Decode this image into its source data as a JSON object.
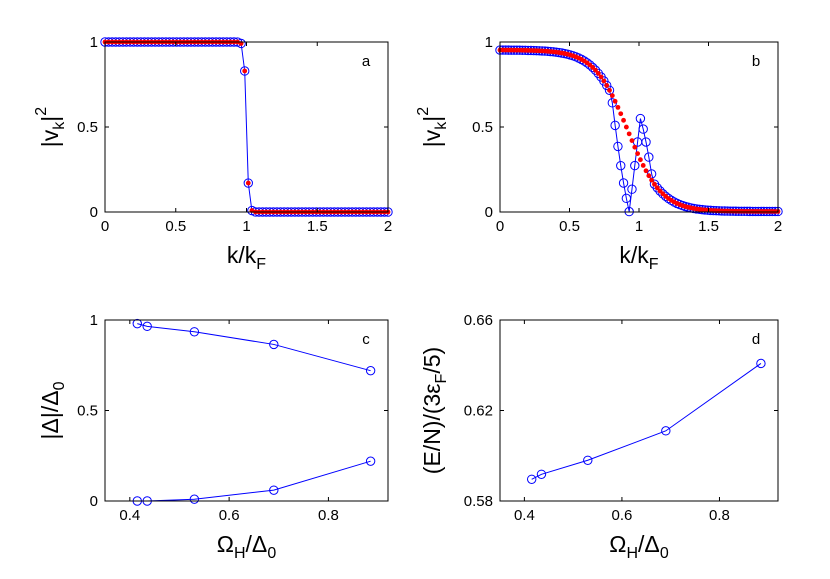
{
  "chart_data": [
    {
      "id": "a",
      "type": "line",
      "panel_label": "a",
      "xlabel": {
        "main": "k/k",
        "sub": "F"
      },
      "ylabel": {
        "pre": "|v",
        "sub": "k",
        "post": "|",
        "sup": "2"
      },
      "xlim": [
        0,
        2
      ],
      "ylim": [
        0,
        1
      ],
      "xticks": [
        0,
        0.5,
        1,
        1.5,
        2
      ],
      "yticks": [
        0,
        0.5,
        1
      ],
      "xticklabels": [
        "0",
        "0.5",
        "1",
        "1.5",
        "2"
      ],
      "yticklabels": [
        "0",
        "0.5",
        "1"
      ],
      "series": [
        {
          "name": "open-circles",
          "style": "line+open-circle",
          "color": "#0000ff",
          "formula": "step",
          "k_range": [
            0,
            2
          ],
          "n": 80,
          "kf_center": 1.0,
          "width": 0.008
        },
        {
          "name": "red-dots",
          "style": "dot",
          "color": "#ff0000",
          "formula": "step",
          "k_range": [
            0,
            2
          ],
          "n": 80,
          "kf_center": 1.0,
          "width": 0.008
        }
      ]
    },
    {
      "id": "b",
      "type": "line",
      "panel_label": "b",
      "xlabel": {
        "main": "k/k",
        "sub": "F"
      },
      "ylabel": {
        "pre": "|v",
        "sub": "k",
        "post": "|",
        "sup": "2"
      },
      "xlim": [
        0,
        2
      ],
      "ylim": [
        0,
        1
      ],
      "xticks": [
        0,
        0.5,
        1,
        1.5,
        2
      ],
      "yticks": [
        0,
        0.5,
        1
      ],
      "xticklabels": [
        "0",
        "0.5",
        "1",
        "1.5",
        "2"
      ],
      "yticklabels": [
        "0",
        "0.5",
        "1"
      ],
      "series": [
        {
          "name": "open-circles",
          "style": "line+open-circle",
          "color": "#0000ff",
          "formula": "bcs-with-hole",
          "k_range": [
            0,
            2
          ],
          "n": 100,
          "kf_center": 0.92,
          "width": 0.12,
          "hole_start": 0.8,
          "hole_end": 1.1,
          "hole_min": 0.93,
          "peak": 1.01
        },
        {
          "name": "red-dots",
          "style": "dot",
          "color": "#ff0000",
          "formula": "bcs",
          "k_range": [
            0,
            2
          ],
          "n": 100,
          "kf_center": 0.92,
          "width": 0.12
        }
      ]
    },
    {
      "id": "c",
      "type": "line",
      "panel_label": "c",
      "xlabel": {
        "main": "Ω",
        "sub": "H",
        "post": "/Δ",
        "sub2": "0"
      },
      "ylabel": {
        "pre": "|Δ|/Δ",
        "sub": "0"
      },
      "xlim": [
        0.35,
        0.92
      ],
      "ylim": [
        0,
        1
      ],
      "xticks": [
        0.4,
        0.6,
        0.8
      ],
      "yticks": [
        0,
        0.5,
        1
      ],
      "xticklabels": [
        "0.4",
        "0.6",
        "0.8"
      ],
      "yticklabels": [
        "0",
        "0.5",
        "1"
      ],
      "series": [
        {
          "name": "upper-branch",
          "style": "line+open-circle",
          "color": "#0000ff",
          "x": [
            0.415,
            0.435,
            0.53,
            0.69,
            0.885
          ],
          "y": [
            0.98,
            0.965,
            0.935,
            0.865,
            0.72
          ]
        },
        {
          "name": "lower-branch",
          "style": "line+open-circle",
          "color": "#0000ff",
          "x": [
            0.415,
            0.435,
            0.53,
            0.69,
            0.885
          ],
          "y": [
            0.0,
            0.0,
            0.01,
            0.06,
            0.22
          ]
        }
      ]
    },
    {
      "id": "d",
      "type": "line",
      "panel_label": "d",
      "xlabel": {
        "main": "Ω",
        "sub": "H",
        "post": "/Δ",
        "sub2": "0"
      },
      "ylabel": {
        "pre": "(E/N)/(3ε",
        "sub": "F",
        "post": "/5)"
      },
      "xlim": [
        0.35,
        0.92
      ],
      "ylim": [
        0.58,
        0.66
      ],
      "xticks": [
        0.4,
        0.6,
        0.8
      ],
      "yticks": [
        0.58,
        0.62,
        0.66
      ],
      "xticklabels": [
        "0.4",
        "0.6",
        "0.8"
      ],
      "yticklabels": [
        "0.58",
        "0.62",
        "0.66"
      ],
      "series": [
        {
          "name": "energy",
          "style": "line+open-circle",
          "color": "#0000ff",
          "x": [
            0.415,
            0.435,
            0.53,
            0.69,
            0.885
          ],
          "y": [
            0.5896,
            0.5918,
            0.598,
            0.611,
            0.6408
          ]
        }
      ]
    }
  ]
}
